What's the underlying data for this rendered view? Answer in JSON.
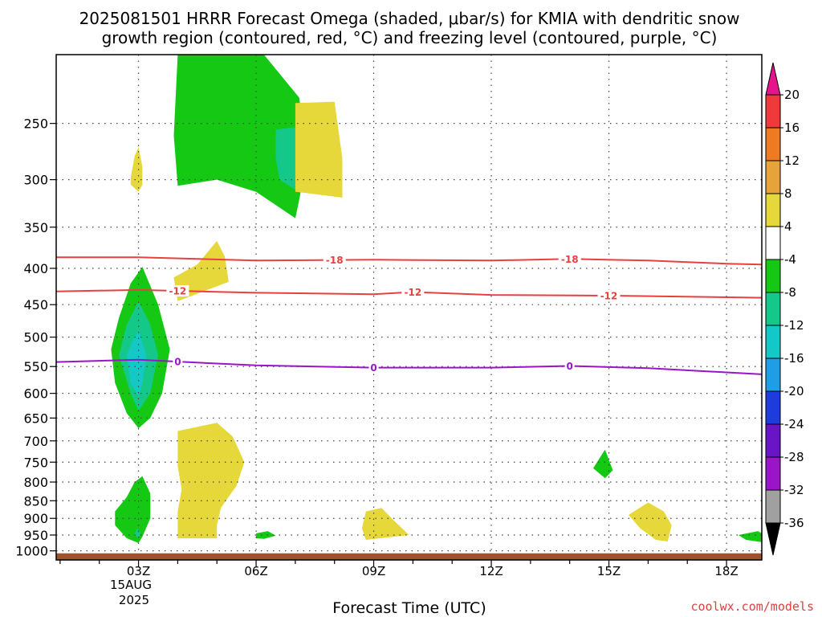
{
  "chart_data": {
    "type": "heatmap",
    "title_line1": "2025081501 HRRR Forecast Omega (shaded, μbar/s) for KMIA with dendritic snow",
    "title_line2": "growth region (contoured, red, °C) and freezing level (contoured, purple, °C)",
    "xlabel": "Forecast Time (UTC)",
    "x_ticks": [
      {
        "hour": 3,
        "label": "03Z"
      },
      {
        "hour": 6,
        "label": "06Z"
      },
      {
        "hour": 9,
        "label": "09Z"
      },
      {
        "hour": 12,
        "label": "12Z"
      },
      {
        "hour": 15,
        "label": "15Z"
      },
      {
        "hour": 18,
        "label": "18Z"
      }
    ],
    "x_date_lines": [
      "15AUG",
      "2025"
    ],
    "xlim": [
      0.9,
      18.9
    ],
    "y_ticks": [
      250,
      300,
      350,
      400,
      450,
      500,
      550,
      600,
      650,
      700,
      750,
      800,
      850,
      900,
      950,
      1000
    ],
    "ylim": [
      200,
      1030
    ],
    "y_scale": "log-pressure",
    "grid": "dotted",
    "colorbar": {
      "levels": [
        20,
        16,
        12,
        8,
        4,
        -4,
        -8,
        -12,
        -16,
        -20,
        -24,
        -28,
        -32,
        -36
      ],
      "colors": [
        "#ee3a3a",
        "#ee7a22",
        "#e6a33a",
        "#e6d83a",
        "#ffffff",
        "#14c814",
        "#14c88a",
        "#14c8c8",
        "#1e9ee6",
        "#1e3cdc",
        "#6a14c8",
        "#9a14c8",
        "#a0a0a0"
      ],
      "top_arrow_color": "#e6148c",
      "bottom_arrow_color": "#000000"
    },
    "contours": [
      {
        "value": -18,
        "color": "#e84040",
        "label": "-18",
        "points": [
          [
            0.9,
            386
          ],
          [
            3,
            386
          ],
          [
            6,
            390
          ],
          [
            9,
            389
          ],
          [
            12,
            390
          ],
          [
            14,
            388
          ],
          [
            16,
            390
          ],
          [
            18,
            394
          ],
          [
            18.9,
            395
          ]
        ],
        "label_hours": [
          8,
          14
        ]
      },
      {
        "value": -12,
        "color": "#e84040",
        "label": "-12",
        "points": [
          [
            0.9,
            431
          ],
          [
            3,
            429
          ],
          [
            6,
            433
          ],
          [
            9,
            435
          ],
          [
            10,
            432
          ],
          [
            12,
            436
          ],
          [
            15,
            437
          ],
          [
            18.9,
            440
          ]
        ],
        "label_hours": [
          4,
          10,
          15
        ]
      },
      {
        "value": 0,
        "color": "#9a14c8",
        "label": "0",
        "points": [
          [
            0.9,
            542
          ],
          [
            3,
            538
          ],
          [
            6,
            548
          ],
          [
            9,
            552
          ],
          [
            12,
            552
          ],
          [
            14,
            549
          ],
          [
            16,
            553
          ],
          [
            18.9,
            564
          ]
        ],
        "label_hours": [
          4,
          9,
          14
        ]
      }
    ],
    "regions": [
      {
        "value": -4,
        "color": "#14c814",
        "points": [
          [
            4.0,
            200
          ],
          [
            6.2,
            200
          ],
          [
            7.1,
            230
          ],
          [
            7.3,
            280
          ],
          [
            7.1,
            320
          ],
          [
            7.0,
            340
          ],
          [
            6.0,
            312
          ],
          [
            5.0,
            300
          ],
          [
            4.0,
            306
          ],
          [
            3.9,
            260
          ]
        ]
      },
      {
        "value": -8,
        "color": "#14c88a",
        "points": [
          [
            6.5,
            255
          ],
          [
            7.0,
            253
          ],
          [
            7.1,
            290
          ],
          [
            7.0,
            310
          ],
          [
            6.6,
            300
          ],
          [
            6.5,
            280
          ]
        ]
      },
      {
        "value": 4,
        "color": "#e6d83a",
        "points": [
          [
            7.0,
            234
          ],
          [
            8.0,
            233
          ],
          [
            8.2,
            280
          ],
          [
            8.2,
            318
          ],
          [
            7.6,
            315
          ],
          [
            7.0,
            312
          ],
          [
            7.0,
            270
          ]
        ]
      },
      {
        "value": 4,
        "color": "#e6d83a",
        "points": [
          [
            2.8,
            298
          ],
          [
            2.9,
            278
          ],
          [
            3.0,
            270
          ],
          [
            3.1,
            288
          ],
          [
            3.1,
            305
          ],
          [
            3.0,
            312
          ],
          [
            2.8,
            305
          ]
        ]
      },
      {
        "value": 4,
        "color": "#e6d83a",
        "points": [
          [
            3.9,
            412
          ],
          [
            4.5,
            395
          ],
          [
            5.0,
            366
          ],
          [
            5.2,
            385
          ],
          [
            5.3,
            418
          ],
          [
            4.8,
            428
          ],
          [
            4.0,
            445
          ]
        ]
      },
      {
        "value": -4,
        "color": "#14c814",
        "points": [
          [
            3.1,
            398
          ],
          [
            3.5,
            450
          ],
          [
            3.8,
            520
          ],
          [
            3.6,
            600
          ],
          [
            3.3,
            650
          ],
          [
            3.0,
            672
          ],
          [
            2.7,
            640
          ],
          [
            2.4,
            580
          ],
          [
            2.3,
            520
          ],
          [
            2.5,
            470
          ],
          [
            2.8,
            420
          ]
        ]
      },
      {
        "value": -8,
        "color": "#14c88a",
        "points": [
          [
            3.0,
            445
          ],
          [
            3.3,
            480
          ],
          [
            3.5,
            530
          ],
          [
            3.3,
            600
          ],
          [
            3.0,
            635
          ],
          [
            2.8,
            600
          ],
          [
            2.5,
            530
          ],
          [
            2.7,
            480
          ]
        ]
      },
      {
        "value": -12,
        "color": "#14c8c8",
        "points": [
          [
            3.0,
            490
          ],
          [
            3.2,
            530
          ],
          [
            3.1,
            580
          ],
          [
            3.0,
            605
          ],
          [
            2.8,
            580
          ],
          [
            2.7,
            530
          ],
          [
            2.9,
            500
          ]
        ]
      },
      {
        "value": 4,
        "color": "#e6d83a",
        "points": [
          [
            4.0,
            678
          ],
          [
            5.0,
            660
          ],
          [
            5.4,
            690
          ],
          [
            5.7,
            750
          ],
          [
            5.5,
            810
          ],
          [
            5.1,
            870
          ],
          [
            5.0,
            920
          ],
          [
            5.0,
            960
          ],
          [
            4.0,
            960
          ],
          [
            4.0,
            880
          ],
          [
            4.1,
            820
          ],
          [
            4.0,
            760
          ]
        ]
      },
      {
        "value": -4,
        "color": "#14c814",
        "points": [
          [
            3.1,
            785
          ],
          [
            3.3,
            830
          ],
          [
            3.3,
            900
          ],
          [
            3.1,
            955
          ],
          [
            3.0,
            975
          ],
          [
            2.7,
            960
          ],
          [
            2.4,
            920
          ],
          [
            2.4,
            880
          ],
          [
            2.7,
            840
          ],
          [
            2.9,
            800
          ]
        ]
      },
      {
        "value": -8,
        "color": "#14c88a",
        "points": [
          [
            2.95,
            930
          ],
          [
            3.05,
            940
          ],
          [
            3.0,
            960
          ],
          [
            2.9,
            950
          ]
        ]
      },
      {
        "value": -4,
        "color": "#14c814",
        "points": [
          [
            6.0,
            945
          ],
          [
            6.3,
            938
          ],
          [
            6.5,
            952
          ],
          [
            6.2,
            962
          ],
          [
            6.0,
            960
          ]
        ]
      },
      {
        "value": 4,
        "color": "#e6d83a",
        "points": [
          [
            8.8,
            880
          ],
          [
            9.2,
            870
          ],
          [
            9.5,
            905
          ],
          [
            9.9,
            950
          ],
          [
            9.3,
            958
          ],
          [
            8.8,
            965
          ],
          [
            8.7,
            930
          ]
        ]
      },
      {
        "value": -4,
        "color": "#14c814",
        "points": [
          [
            14.6,
            765
          ],
          [
            14.9,
            720
          ],
          [
            15.1,
            770
          ],
          [
            14.9,
            790
          ]
        ]
      },
      {
        "value": 4,
        "color": "#e6d83a",
        "points": [
          [
            15.5,
            890
          ],
          [
            16.0,
            855
          ],
          [
            16.4,
            880
          ],
          [
            16.6,
            920
          ],
          [
            16.5,
            970
          ],
          [
            16.2,
            965
          ],
          [
            15.8,
            930
          ]
        ]
      },
      {
        "value": -4,
        "color": "#14c814",
        "points": [
          [
            18.3,
            950
          ],
          [
            18.8,
            938
          ],
          [
            18.9,
            945
          ],
          [
            18.9,
            972
          ],
          [
            18.5,
            965
          ]
        ]
      }
    ],
    "surface": {
      "color": "#a0522d",
      "top_pressure": 1008
    }
  },
  "credit": "coolwx.com/models",
  "credit_color": "#e04040"
}
